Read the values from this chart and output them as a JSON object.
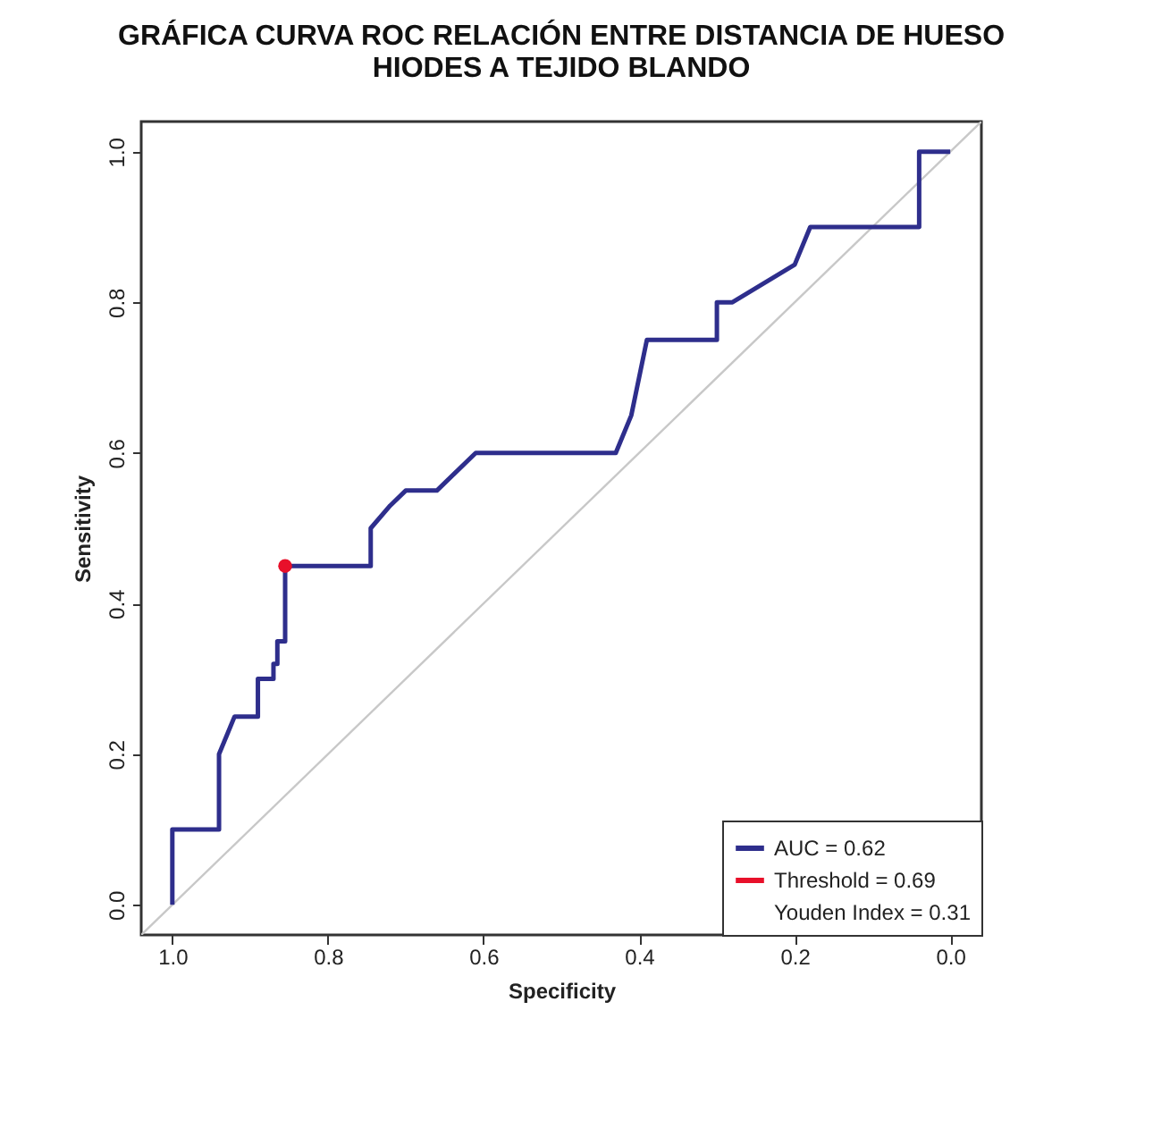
{
  "chart_data": {
    "type": "line",
    "title": [
      "GRÁFICA CURVA ROC RELACIÓN ENTRE DISTANCIA DE HUESO",
      "HIODES A TEJIDO BLANDO"
    ],
    "xlabel": "Specificity",
    "ylabel": "Sensitivity",
    "xlim": [
      1.04,
      -0.04
    ],
    "ylim": [
      -0.04,
      1.04
    ],
    "xticks": [
      {
        "value": 1,
        "label": "1.0"
      },
      0.8,
      0.6,
      0.4,
      0.2,
      {
        "value": 0,
        "label": "0.0"
      }
    ],
    "yticks": [
      {
        "value": 0,
        "label": "0.0"
      },
      0.2,
      0.4,
      0.6,
      0.8,
      {
        "value": 1,
        "label": "1.0"
      }
    ],
    "grid": false,
    "legend": "bottom right",
    "line_style": "solid",
    "series": [
      {
        "type": "line",
        "color": "#c8c8c8",
        "x": [
          1.04,
          -0.04
        ],
        "values": [
          -0.04,
          1.04
        ]
      },
      {
        "type": "line",
        "name": "AUC = 0.62",
        "color": "#2e2e8c",
        "marker": "none",
        "x": [
          1,
          1,
          0.94,
          0.94,
          0.92,
          0.89,
          0.89,
          0.87,
          0.87,
          0.865,
          0.865,
          0.855,
          0.855,
          0.745,
          0.745,
          0.72,
          0.7,
          0.66,
          0.61,
          0.43,
          0.41,
          0.39,
          0.3,
          0.3,
          0.28,
          0.2,
          0.18,
          0.04,
          0.04,
          0
        ],
        "values": [
          0,
          0.1,
          0.1,
          0.2,
          0.25,
          0.25,
          0.3,
          0.3,
          0.32,
          0.32,
          0.35,
          0.35,
          0.45,
          0.45,
          0.5,
          0.53,
          0.55,
          0.55,
          0.6,
          0.6,
          0.65,
          0.75,
          0.75,
          0.8,
          0.8,
          0.85,
          0.9,
          0.9,
          1,
          1
        ]
      },
      {
        "type": "scatter",
        "name": "Threshold = 0.69",
        "color": "#e8102a",
        "marker": "circle",
        "x": [
          0.855
        ],
        "values": [
          0.45
        ]
      }
    ],
    "annotations": [
      "Youden Index = 0.31"
    ]
  }
}
